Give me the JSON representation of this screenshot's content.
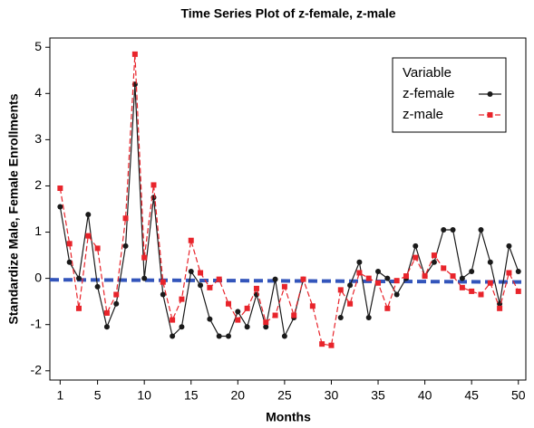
{
  "chart_data": {
    "type": "line",
    "title": "Time Series Plot of z-female, z-male",
    "x_label": "Months",
    "y_label": "Standardize Male, Female Enrollments",
    "legend_title": "Variable",
    "legend": "top-right",
    "x": [
      1,
      2,
      3,
      4,
      5,
      6,
      7,
      8,
      9,
      10,
      11,
      12,
      13,
      14,
      15,
      16,
      17,
      18,
      19,
      20,
      21,
      22,
      23,
      24,
      25,
      26,
      27,
      28,
      29,
      30,
      31,
      32,
      33,
      34,
      35,
      36,
      37,
      38,
      39,
      40,
      41,
      42,
      43,
      44,
      45,
      46,
      47,
      48,
      49,
      50
    ],
    "series": [
      {
        "name": "z-female",
        "color": "#1a1a1a",
        "marker": "circle",
        "dash": false,
        "values": [
          1.55,
          0.35,
          0.0,
          1.38,
          -0.18,
          -1.05,
          -0.55,
          0.7,
          4.2,
          0.0,
          1.75,
          -0.35,
          -1.25,
          -1.05,
          0.15,
          -0.15,
          -0.88,
          -1.25,
          -1.25,
          -0.72,
          -1.05,
          -0.35,
          -1.05,
          -0.02,
          -1.25,
          -0.85,
          -0.02,
          null,
          null,
          null,
          -0.85,
          -0.15,
          0.35,
          -0.85,
          0.15,
          0.0,
          -0.35,
          0.0,
          0.7,
          0.05,
          0.35,
          1.05,
          1.05,
          0.0,
          0.15,
          1.05,
          0.35,
          -0.55,
          0.7,
          0.15
        ]
      },
      {
        "name": "z-male",
        "color": "#e8242b",
        "marker": "square",
        "dash": true,
        "values": [
          1.95,
          0.75,
          -0.65,
          0.92,
          0.65,
          -0.75,
          -0.35,
          1.3,
          4.85,
          0.45,
          2.02,
          -0.08,
          -0.9,
          -0.45,
          0.82,
          0.12,
          -0.2,
          -0.02,
          -0.55,
          -0.9,
          -0.65,
          -0.22,
          -0.95,
          -0.8,
          -0.18,
          -0.8,
          -0.02,
          -0.6,
          -1.42,
          -1.45,
          -0.25,
          -0.55,
          0.12,
          0.0,
          -0.1,
          -0.65,
          -0.05,
          0.05,
          0.45,
          0.05,
          0.5,
          0.22,
          0.05,
          -0.2,
          -0.28,
          -0.35,
          -0.1,
          -0.65,
          0.12,
          -0.28
        ]
      }
    ],
    "reference_line": {
      "x": [
        -0.1,
        50.8
      ],
      "values": [
        -0.03,
        -0.08
      ],
      "color": "#3355bb"
    },
    "xlim": [
      -0.1,
      50.8
    ],
    "ylim": [
      -2.2,
      5.2
    ],
    "xticks": [
      1,
      5,
      10,
      15,
      20,
      25,
      30,
      35,
      40,
      45,
      50
    ],
    "yticks": [
      -2,
      -1,
      0,
      1,
      2,
      3,
      4,
      5
    ]
  }
}
